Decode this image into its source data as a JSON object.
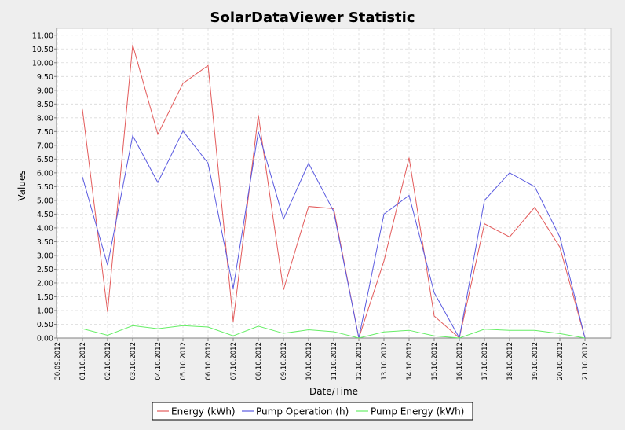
{
  "colors": {
    "background": "#eeeeee",
    "plot_background": "#ffffff",
    "grid": "#d9d9d9",
    "axis": "#808080",
    "energy": "#e35b5b",
    "pump_operation": "#5a5ae0",
    "pump_energy": "#66ee66"
  },
  "chart_data": {
    "type": "line",
    "title": "SolarDataViewer Statistic",
    "xlabel": "Date/Time",
    "ylabel": "Values",
    "x": [
      "30.09.2012",
      "01.10.2012",
      "02.10.2012",
      "03.10.2012",
      "04.10.2012",
      "05.10.2012",
      "06.10.2012",
      "07.10.2012",
      "08.10.2012",
      "09.10.2012",
      "10.10.2012",
      "11.10.2012",
      "12.10.2012",
      "13.10.2012",
      "14.10.2012",
      "15.10.2012",
      "16.10.2012",
      "17.10.2012",
      "18.10.2012",
      "19.10.2012",
      "20.10.2012",
      "21.10.2012"
    ],
    "ylim": [
      0,
      11.25
    ],
    "yticks": [
      "0.00",
      "0.50",
      "1.00",
      "1.50",
      "2.00",
      "2.50",
      "3.00",
      "3.50",
      "4.00",
      "4.50",
      "5.00",
      "5.50",
      "6.00",
      "6.50",
      "7.00",
      "7.50",
      "8.00",
      "8.50",
      "9.00",
      "9.50",
      "10.00",
      "10.50",
      "11.00"
    ],
    "grid": true,
    "legend": "bottom",
    "series": [
      {
        "name": "Energy (kWh)",
        "color": "#e35b5b",
        "values": [
          null,
          8.3,
          0.95,
          10.65,
          7.4,
          9.25,
          9.9,
          0.6,
          8.1,
          1.75,
          4.78,
          4.7,
          0.0,
          2.8,
          6.55,
          0.8,
          0.0,
          4.15,
          3.67,
          4.75,
          3.3,
          0.0
        ]
      },
      {
        "name": "Pump Operation (h)",
        "color": "#5a5ae0",
        "values": [
          null,
          5.85,
          2.65,
          7.35,
          5.65,
          7.52,
          6.35,
          1.8,
          7.5,
          4.32,
          6.35,
          4.6,
          0.0,
          4.5,
          5.18,
          1.65,
          0.0,
          5.0,
          6.0,
          5.5,
          3.67,
          0.0
        ]
      },
      {
        "name": "Pump Energy (kWh)",
        "color": "#66ee66",
        "values": [
          null,
          0.34,
          0.1,
          0.45,
          0.34,
          0.45,
          0.4,
          0.08,
          0.43,
          0.17,
          0.3,
          0.23,
          0.0,
          0.22,
          0.28,
          0.08,
          0.0,
          0.32,
          0.28,
          0.28,
          0.16,
          0.0
        ]
      }
    ]
  }
}
